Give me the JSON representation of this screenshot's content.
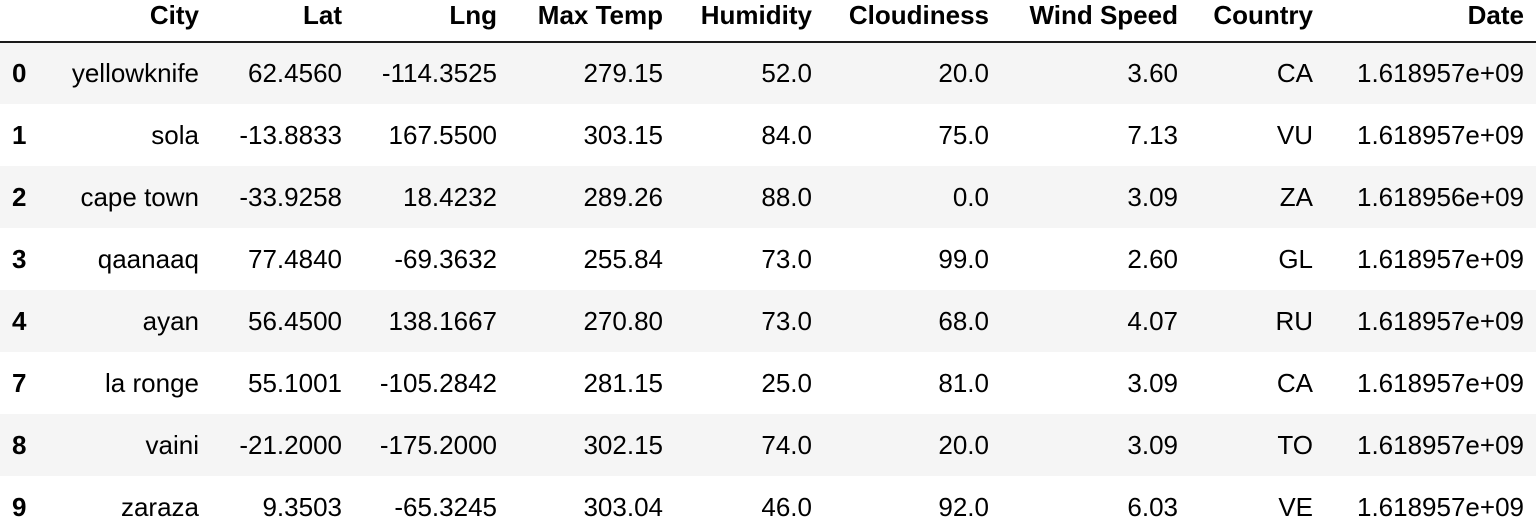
{
  "table": {
    "columns": [
      "City",
      "Lat",
      "Lng",
      "Max Temp",
      "Humidity",
      "Cloudiness",
      "Wind Speed",
      "Country",
      "Date"
    ],
    "rows": [
      {
        "index": "0",
        "cells": [
          "yellowknife",
          "62.4560",
          "-114.3525",
          "279.15",
          "52.0",
          "20.0",
          "3.60",
          "CA",
          "1.618957e+09"
        ]
      },
      {
        "index": "1",
        "cells": [
          "sola",
          "-13.8833",
          "167.5500",
          "303.15",
          "84.0",
          "75.0",
          "7.13",
          "VU",
          "1.618957e+09"
        ]
      },
      {
        "index": "2",
        "cells": [
          "cape town",
          "-33.9258",
          "18.4232",
          "289.26",
          "88.0",
          "0.0",
          "3.09",
          "ZA",
          "1.618956e+09"
        ]
      },
      {
        "index": "3",
        "cells": [
          "qaanaaq",
          "77.4840",
          "-69.3632",
          "255.84",
          "73.0",
          "99.0",
          "2.60",
          "GL",
          "1.618957e+09"
        ]
      },
      {
        "index": "4",
        "cells": [
          "ayan",
          "56.4500",
          "138.1667",
          "270.80",
          "73.0",
          "68.0",
          "4.07",
          "RU",
          "1.618957e+09"
        ]
      },
      {
        "index": "7",
        "cells": [
          "la ronge",
          "55.1001",
          "-105.2842",
          "281.15",
          "25.0",
          "81.0",
          "3.09",
          "CA",
          "1.618957e+09"
        ]
      },
      {
        "index": "8",
        "cells": [
          "vaini",
          "-21.2000",
          "-175.2000",
          "302.15",
          "74.0",
          "20.0",
          "3.09",
          "TO",
          "1.618957e+09"
        ]
      },
      {
        "index": "9",
        "cells": [
          "zaraza",
          "9.3503",
          "-65.3245",
          "303.04",
          "46.0",
          "92.0",
          "6.03",
          "VE",
          "1.618957e+09"
        ]
      }
    ]
  }
}
